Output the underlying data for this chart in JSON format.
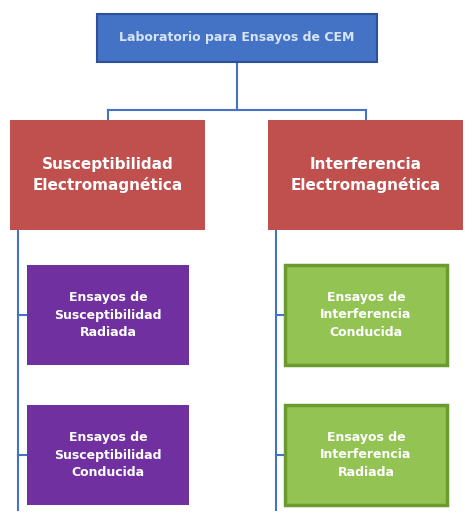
{
  "title_text": "Laboratorio para Ensayos de CEM",
  "title_box_color": "#4472C4",
  "title_text_color": "#D6E4F7",
  "title_border_color": "#2E5099",
  "left_main_text": "Susceptibilidad\nElectromagnética",
  "right_main_text": "Interferencia\nElectromagnética",
  "main_box_color": "#C0504D",
  "main_text_color": "#FFFFFF",
  "left_child1_text": "Ensayos de\nSusceptibilidad\nRadiada",
  "left_child2_text": "Ensayos de\nSusceptibilidad\nConducida",
  "left_child_color": "#7030A0",
  "left_child_text_color": "#FFFFFF",
  "right_child1_text": "Ensayos de\nInterferencia\nConducida",
  "right_child2_text": "Ensayos de\nInterferencia\nRadiada",
  "right_child_color": "#92C353",
  "right_child_border_color": "#6B9B2E",
  "right_child_text_color": "#FFFFFF",
  "line_color": "#4472C4",
  "bg_color": "#FFFFFF",
  "fig_w": 4.74,
  "fig_h": 5.13,
  "dpi": 100
}
